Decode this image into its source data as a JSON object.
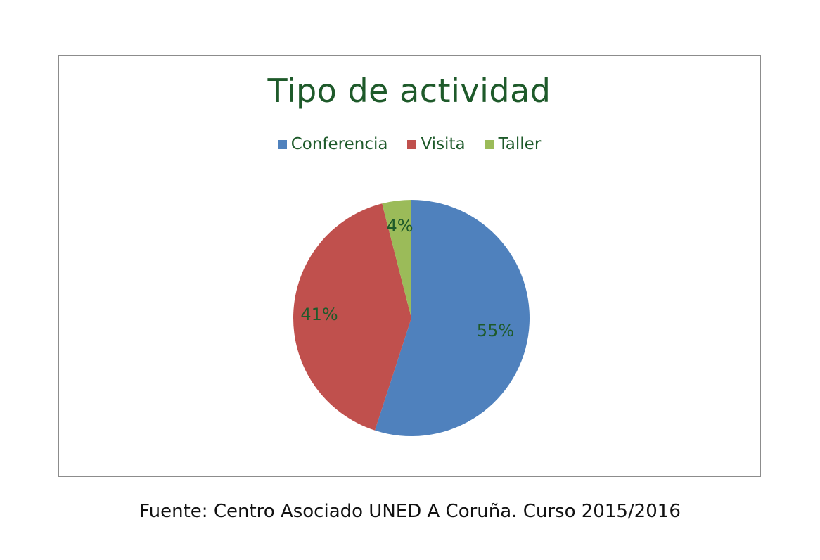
{
  "chart_data": {
    "type": "pie",
    "title": "Tipo de actividad",
    "categories": [
      "Conferencia",
      "Visita",
      "Taller"
    ],
    "values": [
      55,
      41,
      4
    ],
    "data_labels": [
      "55%",
      "41%",
      "4%"
    ],
    "colors": [
      "#4f81bd",
      "#c0504d",
      "#9bbb59"
    ],
    "legend_position": "top",
    "start_angle": "12 o'clock, clockwise"
  },
  "footer": {
    "source": "Fuente: Centro Asociado UNED A Coruña. Curso 2015/2016"
  },
  "colors": {
    "title_text": "#1e5a2a",
    "frame_border": "#8c8c8c"
  }
}
